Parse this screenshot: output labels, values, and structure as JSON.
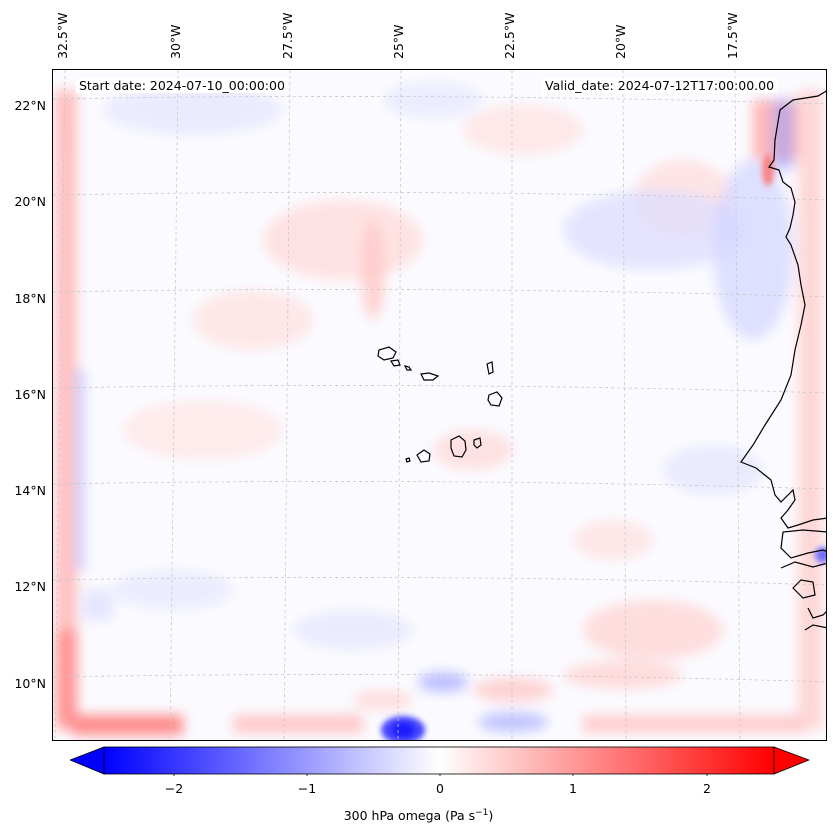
{
  "header": {
    "start_date": "Start date: 2024-07-10_00:00:00",
    "valid_date": "Valid_date: 2024-07-12T17:00:00.00"
  },
  "map": {
    "longitude_labels": [
      "32.5°W",
      "30°W",
      "27.5°W",
      "25°W",
      "22.5°W",
      "20°W",
      "17.5°W"
    ],
    "latitude_labels": [
      "22°N",
      "20°N",
      "18°N",
      "16°N",
      "14°N",
      "12°N",
      "10°N"
    ],
    "field": "300 hPa omega",
    "colormap": "bwr",
    "coastline_color": "#000000"
  },
  "colorbar": {
    "ticks": [
      "−2",
      "−1",
      "0",
      "1",
      "2"
    ],
    "label_main": "300 hPa omega (Pa s",
    "label_exp": "−1",
    "label_end": ")",
    "range": [
      -2.6,
      2.6
    ],
    "extend": "both",
    "min_color": "#0000ff",
    "mid_color": "#ffffff",
    "max_color": "#ff0000"
  }
}
